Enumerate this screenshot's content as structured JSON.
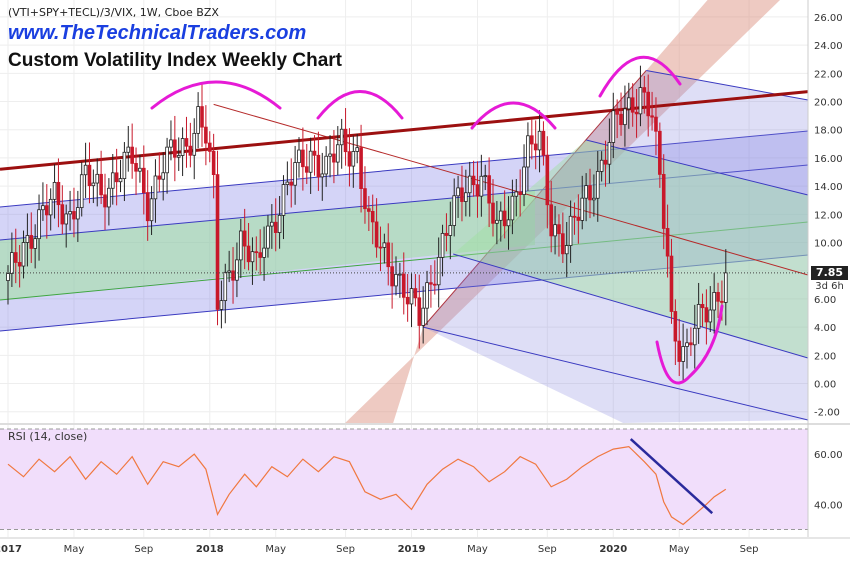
{
  "header": {
    "ticker": "(VTI+SPY+TECL)/3/VIX, 1W, Cboe BZX",
    "brand": "www.TheTechnicalTraders.com",
    "title": "Custom Volatility Index Weekly Chart"
  },
  "price_tag": {
    "value": "7.85",
    "timer": "3d 6h"
  },
  "rsi_panel": {
    "label": "RSI (14, close)"
  },
  "colors": {
    "candle_up": "#222222",
    "candle_down": "#c8182a",
    "brand_blue": "#1a3fe0",
    "annotation_magenta": "#e61ad6",
    "rsi_line": "#f07840",
    "rsi_band": "#f1defb",
    "channel_blue": "#3a3ac0",
    "channel_green": "#3fa73f",
    "resistance_red": "#9c1010",
    "wedge_red": "#d98a78"
  },
  "chart_data": [
    {
      "type": "candlestick",
      "title": "Custom Volatility Index Weekly Chart",
      "ylim": [
        -2.8,
        27.2
      ],
      "y_ticks": [
        -2.0,
        0.0,
        2.0,
        4.0,
        6.0,
        8.0,
        10.0,
        12.0,
        14.0,
        16.0,
        18.0,
        20.0,
        22.0,
        24.0,
        26.0
      ],
      "y_tick_labels": [
        "-2.00",
        "0.00",
        "2.00",
        "4.00",
        "6.00",
        "8.00",
        "10.00",
        "12.00",
        "14.00",
        "16.00",
        "18.00",
        "20.00",
        "22.00",
        "24.00",
        "26.00"
      ],
      "x_tick_labels": [
        "2017",
        "May",
        "Sep",
        "2018",
        "May",
        "Sep",
        "2019",
        "May",
        "Sep",
        "2020",
        "May",
        "Sep"
      ],
      "x_tick_weeks": [
        0,
        17,
        35,
        52,
        69,
        87,
        104,
        121,
        139,
        156,
        173,
        191
      ],
      "bars_in_view": 206,
      "last_value": 7.85,
      "grid": true,
      "series": [
        {
          "week": 0,
          "value": 7.2
        },
        {
          "week": 4,
          "value": 10.0
        },
        {
          "week": 8,
          "value": 11.5
        },
        {
          "week": 12,
          "value": 13.0
        },
        {
          "week": 16,
          "value": 12.0
        },
        {
          "week": 20,
          "value": 14.5
        },
        {
          "week": 24,
          "value": 13.5
        },
        {
          "week": 28,
          "value": 15.0
        },
        {
          "week": 32,
          "value": 15.8
        },
        {
          "week": 36,
          "value": 13.0
        },
        {
          "week": 40,
          "value": 15.5
        },
        {
          "week": 44,
          "value": 16.5
        },
        {
          "week": 46,
          "value": 17.0
        },
        {
          "week": 49,
          "value": 19.0
        },
        {
          "week": 51,
          "value": 17.5
        },
        {
          "week": 53,
          "value": 13.5
        },
        {
          "week": 54,
          "value": 5.5
        },
        {
          "week": 56,
          "value": 7.5
        },
        {
          "week": 60,
          "value": 10.0
        },
        {
          "week": 64,
          "value": 8.0
        },
        {
          "week": 66,
          "value": 10.5
        },
        {
          "week": 70,
          "value": 12.5
        },
        {
          "week": 74,
          "value": 15.0
        },
        {
          "week": 78,
          "value": 16.5
        },
        {
          "week": 82,
          "value": 15.0
        },
        {
          "week": 86,
          "value": 17.0
        },
        {
          "week": 90,
          "value": 16.5
        },
        {
          "week": 93,
          "value": 11.0
        },
        {
          "week": 96,
          "value": 9.5
        },
        {
          "week": 100,
          "value": 8.0
        },
        {
          "week": 103,
          "value": 6.0
        },
        {
          "week": 106,
          "value": 4.5
        },
        {
          "week": 110,
          "value": 8.5
        },
        {
          "week": 114,
          "value": 11.5
        },
        {
          "week": 118,
          "value": 14.0
        },
        {
          "week": 122,
          "value": 15.0
        },
        {
          "week": 126,
          "value": 10.5
        },
        {
          "week": 130,
          "value": 13.0
        },
        {
          "week": 134,
          "value": 16.5
        },
        {
          "week": 137,
          "value": 17.0
        },
        {
          "week": 140,
          "value": 11.5
        },
        {
          "week": 144,
          "value": 10.0
        },
        {
          "week": 148,
          "value": 12.5
        },
        {
          "week": 152,
          "value": 15.0
        },
        {
          "week": 156,
          "value": 18.0
        },
        {
          "week": 160,
          "value": 19.5
        },
        {
          "week": 163,
          "value": 21.0
        },
        {
          "week": 166,
          "value": 19.0
        },
        {
          "week": 168,
          "value": 14.0
        },
        {
          "week": 170,
          "value": 9.0
        },
        {
          "week": 171,
          "value": 4.5
        },
        {
          "week": 173,
          "value": 3.0
        },
        {
          "week": 175,
          "value": 2.3
        },
        {
          "week": 177,
          "value": 4.0
        },
        {
          "week": 179,
          "value": 4.5
        },
        {
          "week": 181,
          "value": 5.5
        },
        {
          "week": 183,
          "value": 6.5
        },
        {
          "week": 185,
          "value": 7.85
        }
      ]
    },
    {
      "type": "line",
      "title": "RSI (14, close)",
      "ylim": [
        27,
        72
      ],
      "y_ticks": [
        40,
        60
      ],
      "y_tick_labels": [
        "40.00",
        "60.00"
      ],
      "band": [
        30,
        70
      ],
      "series": [
        {
          "week": 0,
          "value": 56
        },
        {
          "week": 4,
          "value": 51
        },
        {
          "week": 8,
          "value": 58
        },
        {
          "week": 12,
          "value": 53
        },
        {
          "week": 16,
          "value": 59
        },
        {
          "week": 20,
          "value": 50
        },
        {
          "week": 24,
          "value": 57
        },
        {
          "week": 28,
          "value": 52
        },
        {
          "week": 32,
          "value": 59
        },
        {
          "week": 36,
          "value": 48
        },
        {
          "week": 40,
          "value": 57
        },
        {
          "week": 44,
          "value": 55
        },
        {
          "week": 48,
          "value": 60
        },
        {
          "week": 51,
          "value": 54
        },
        {
          "week": 54,
          "value": 36
        },
        {
          "week": 57,
          "value": 44
        },
        {
          "week": 61,
          "value": 52
        },
        {
          "week": 64,
          "value": 47
        },
        {
          "week": 68,
          "value": 55
        },
        {
          "week": 72,
          "value": 51
        },
        {
          "week": 76,
          "value": 58
        },
        {
          "week": 80,
          "value": 53
        },
        {
          "week": 84,
          "value": 59
        },
        {
          "week": 88,
          "value": 57
        },
        {
          "week": 92,
          "value": 45
        },
        {
          "week": 96,
          "value": 42
        },
        {
          "week": 100,
          "value": 44
        },
        {
          "week": 104,
          "value": 38
        },
        {
          "week": 108,
          "value": 48
        },
        {
          "week": 112,
          "value": 54
        },
        {
          "week": 116,
          "value": 58
        },
        {
          "week": 120,
          "value": 55
        },
        {
          "week": 124,
          "value": 49
        },
        {
          "week": 128,
          "value": 53
        },
        {
          "week": 132,
          "value": 59
        },
        {
          "week": 136,
          "value": 56
        },
        {
          "week": 140,
          "value": 47
        },
        {
          "week": 144,
          "value": 50
        },
        {
          "week": 148,
          "value": 55
        },
        {
          "week": 152,
          "value": 59
        },
        {
          "week": 156,
          "value": 62
        },
        {
          "week": 160,
          "value": 63
        },
        {
          "week": 164,
          "value": 57
        },
        {
          "week": 167,
          "value": 52
        },
        {
          "week": 169,
          "value": 41
        },
        {
          "week": 171,
          "value": 35
        },
        {
          "week": 174,
          "value": 32
        },
        {
          "week": 177,
          "value": 36
        },
        {
          "week": 180,
          "value": 40
        },
        {
          "week": 182,
          "value": 43
        },
        {
          "week": 185,
          "value": 46
        }
      ]
    }
  ]
}
